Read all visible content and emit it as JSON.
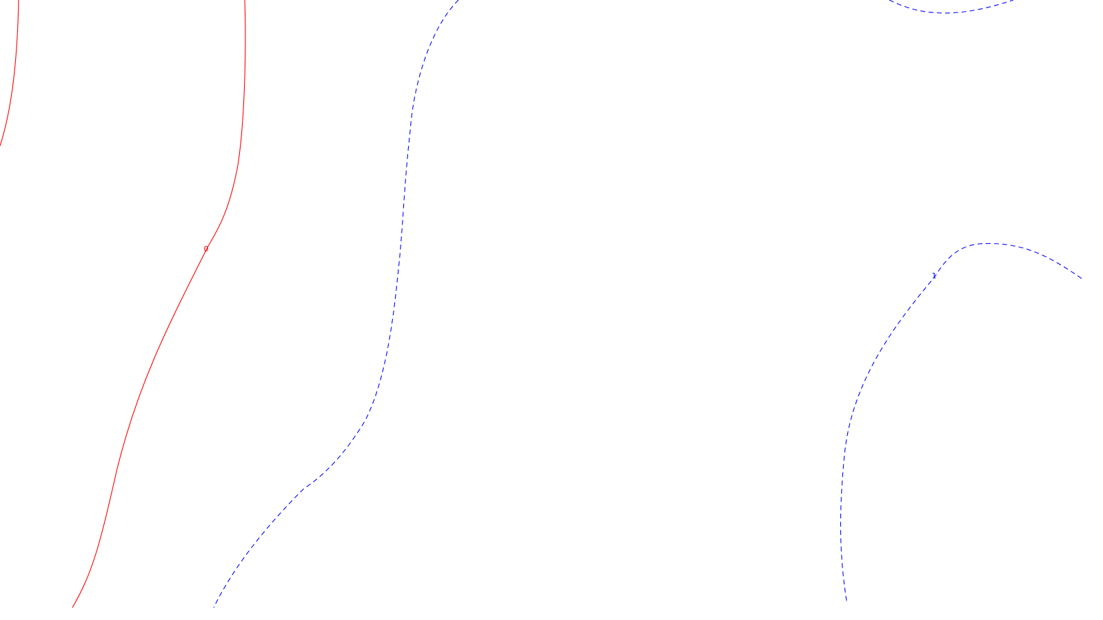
{
  "chart_data": {
    "type": "contour",
    "title": "",
    "xlabel": "",
    "ylabel": "",
    "grid": false,
    "legend": "none",
    "levels": [
      {
        "id": "red",
        "label": "0",
        "color": "#ff0000",
        "style": "solid",
        "label_index": 0
      },
      {
        "id": "blue",
        "label": "1",
        "color": "#0000ff",
        "style": "dashed",
        "label_index": 2
      }
    ]
  }
}
